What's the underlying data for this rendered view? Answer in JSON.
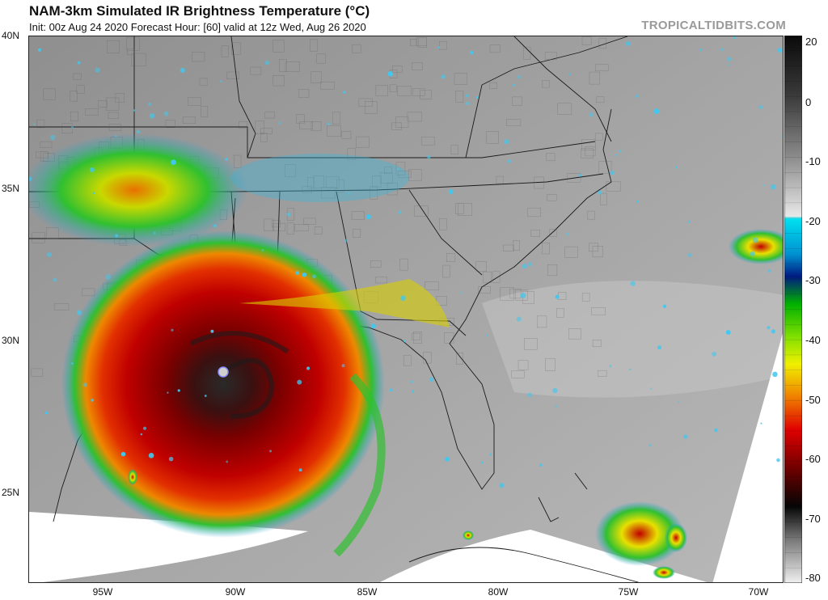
{
  "header": {
    "title": "NAM-3km Simulated IR Brightness Temperature (°C)",
    "subtitle": "Init: 00z Aug 24 2020   Forecast Hour: [60]   valid at 12z Wed, Aug 26 2020",
    "source": "TROPICALTIDBITS.COM"
  },
  "axes": {
    "lat_labels": [
      "40N",
      "35N",
      "30N",
      "25N"
    ],
    "lon_labels": [
      "95W",
      "90W",
      "85W",
      "80W",
      "75W",
      "70W"
    ]
  },
  "colorbar": {
    "labels": [
      "20",
      "0",
      "-10",
      "-20",
      "-30",
      "-40",
      "-50",
      "-60",
      "-70",
      "-80"
    ],
    "colors": [
      "#111111",
      "#444444",
      "#888888",
      "#cfcfcf",
      "#00c8e0",
      "#0033aa",
      "#00aa00",
      "#e8e800",
      "#e07000",
      "#c80000",
      "#300000",
      "#f0f0f0"
    ]
  },
  "map": {
    "storm_center_lat": 29.1,
    "storm_center_lon": -90.7
  }
}
